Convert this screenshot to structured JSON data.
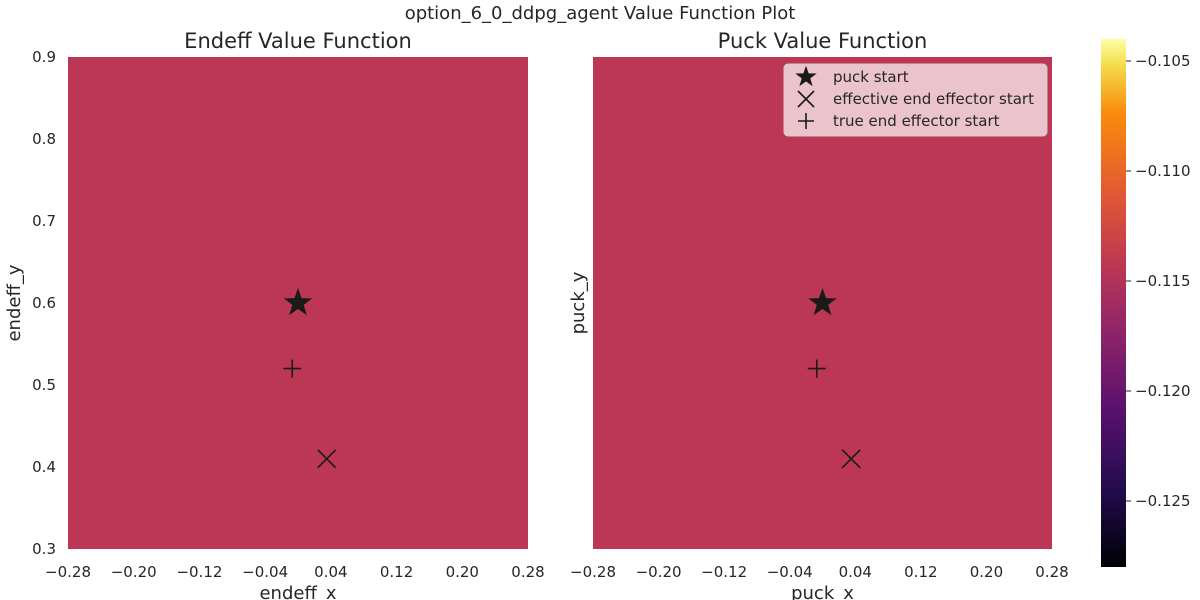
{
  "figure": {
    "suptitle": "option_6_0_ddpg_agent Value Function Plot"
  },
  "chart_data": [
    {
      "type": "heatmap",
      "title": "Endeff Value Function",
      "xlabel": "endeff_x",
      "ylabel": "endeff_y",
      "xlim": [
        -0.28,
        0.28
      ],
      "ylim": [
        0.3,
        0.9
      ],
      "xticks": [
        "−0.28",
        "−0.20",
        "−0.12",
        "−0.04",
        "0.04",
        "0.12",
        "0.20",
        "0.28"
      ],
      "yticks": [
        "0.3",
        "0.4",
        "0.5",
        "0.6",
        "0.7",
        "0.8",
        "0.9"
      ],
      "value": -0.117,
      "fill_color": "#bb3754",
      "markers": [
        {
          "label": "puck start",
          "shape": "star",
          "x": 0.0,
          "y": 0.6
        },
        {
          "label": "effective end effector start",
          "shape": "x",
          "x": 0.035,
          "y": 0.41
        },
        {
          "label": "true end effector start",
          "shape": "plus",
          "x": -0.007,
          "y": 0.52
        }
      ],
      "grid": false,
      "legend": "none"
    },
    {
      "type": "heatmap",
      "title": "Puck Value Function",
      "xlabel": "puck_x",
      "ylabel": "puck_y",
      "xlim": [
        -0.28,
        0.28
      ],
      "ylim": [
        0.3,
        0.9
      ],
      "xticks": [
        "−0.28",
        "−0.20",
        "−0.12",
        "−0.04",
        "0.04",
        "0.12",
        "0.20",
        "0.28"
      ],
      "yticks": [],
      "value": -0.117,
      "fill_color": "#bb3754",
      "markers": [
        {
          "label": "puck start",
          "shape": "star",
          "x": 0.0,
          "y": 0.6
        },
        {
          "label": "effective end effector start",
          "shape": "x",
          "x": 0.035,
          "y": 0.41
        },
        {
          "label": "true end effector start",
          "shape": "plus",
          "x": -0.007,
          "y": 0.52
        }
      ],
      "grid": false,
      "legend": "top-right",
      "legend_entries": [
        "puck start",
        "effective end effector start",
        "true end effector start"
      ]
    }
  ],
  "colorbar": {
    "colormap": "inferno",
    "range": [
      -0.128,
      -0.104
    ],
    "ticks": [
      {
        "value": -0.105,
        "label": "−0.105"
      },
      {
        "value": -0.11,
        "label": "−0.110"
      },
      {
        "value": -0.115,
        "label": "−0.115"
      },
      {
        "value": -0.12,
        "label": "−0.120"
      },
      {
        "value": -0.125,
        "label": "−0.125"
      }
    ]
  },
  "colors": {
    "marker": "#1a1a1a",
    "legend_bg": "#ffffff",
    "legend_border": "#cccccc"
  }
}
